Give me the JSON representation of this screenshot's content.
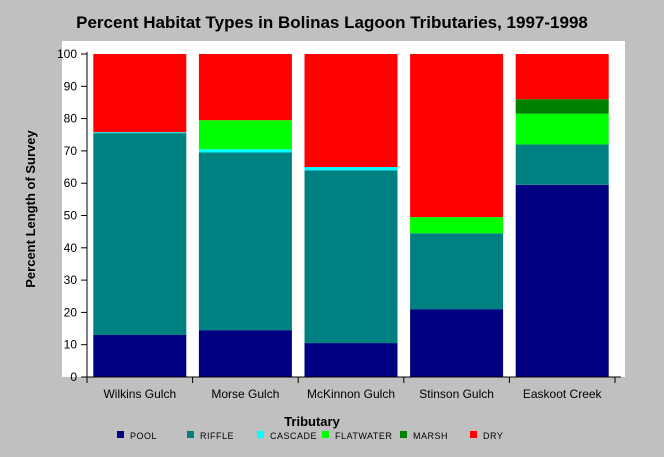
{
  "chart_data": {
    "type": "bar",
    "stacked": true,
    "title": "Percent Habitat Types in Bolinas Lagoon Tributaries, 1997-1998",
    "xlabel": "Tributary",
    "ylabel": "Percent Length of Survey",
    "ylim": [
      0,
      100
    ],
    "yticks": [
      0,
      10,
      20,
      30,
      40,
      50,
      60,
      70,
      80,
      90,
      100
    ],
    "grid": false,
    "legend_position": "bottom",
    "categories": [
      "Wilkins Gulch",
      "Morse Gulch",
      "McKinnon Gulch",
      "Stinson Gulch",
      "Easkoot Creek"
    ],
    "series": [
      {
        "name": "POOL",
        "color": "#000080",
        "values": [
          13,
          14.5,
          10.5,
          21,
          59.5
        ]
      },
      {
        "name": "RIFFLE",
        "color": "#008080",
        "values": [
          62.5,
          55,
          53.5,
          23.5,
          12.5
        ]
      },
      {
        "name": "CASCADE",
        "color": "#00ffff",
        "values": [
          0.3,
          1,
          1,
          0,
          0
        ]
      },
      {
        "name": "FLATWATER",
        "color": "#00ff00",
        "values": [
          0,
          9,
          0,
          5,
          9.5
        ]
      },
      {
        "name": "MARSH",
        "color": "#008000",
        "values": [
          0,
          0,
          0,
          0,
          4.5
        ]
      },
      {
        "name": "DRY",
        "color": "#ff0000",
        "values": [
          24.2,
          20.5,
          35,
          50.5,
          14
        ]
      }
    ]
  }
}
